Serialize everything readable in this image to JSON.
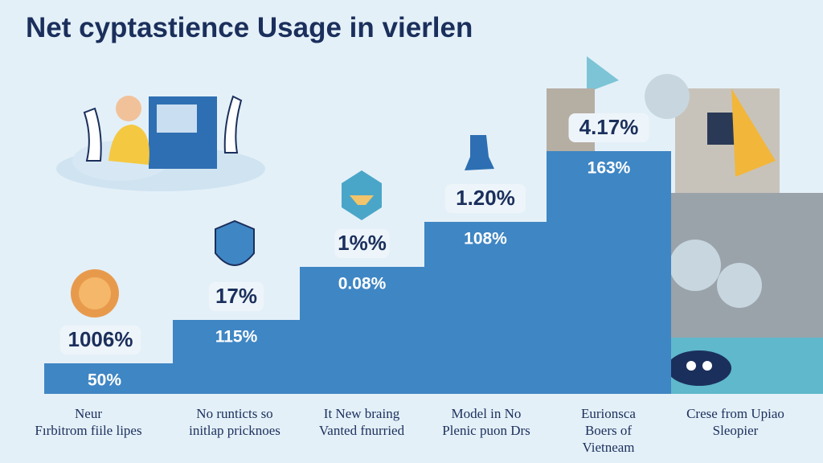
{
  "title": "Net cyptastience Usage in vierlen",
  "steps": [
    {
      "top_label": "1006%",
      "inner_label": "50%",
      "category": [
        "Neur",
        "Fırbitrom fiile lipes"
      ]
    },
    {
      "top_label": "17%",
      "inner_label": "115%",
      "category": [
        "No runticts so",
        "initlap pricknoes"
      ]
    },
    {
      "top_label": "1%%",
      "inner_label": "0.08%",
      "category": [
        "It New braing",
        "Vanted fnurried"
      ]
    },
    {
      "top_label": "1.20%",
      "inner_label": "108%",
      "category": [
        "Model in No",
        "Plenic puon Drs"
      ]
    },
    {
      "top_label": "4.17%",
      "inner_label": "163%",
      "category": [
        "Eurionsca",
        "Boers of",
        "Vietneam"
      ]
    },
    {
      "category": [
        "Crese from Upiao",
        "Sleopier"
      ]
    }
  ]
}
